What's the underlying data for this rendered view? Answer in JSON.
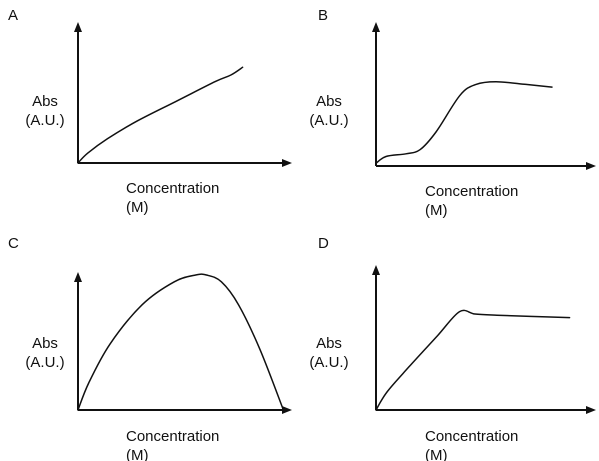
{
  "chart_data": [
    {
      "type": "line",
      "panel": "A",
      "ylabel": [
        "Abs",
        "(A.U.)"
      ],
      "xlabel": [
        "Concentration",
        "(M)"
      ],
      "xlim": [
        0,
        1
      ],
      "ylim": [
        0,
        1
      ],
      "series": [
        {
          "x": [
            0,
            0.05,
            0.15,
            0.3,
            0.5,
            0.7,
            0.78,
            0.84
          ],
          "y": [
            0,
            0.09,
            0.22,
            0.38,
            0.56,
            0.74,
            0.8,
            0.87
          ]
        }
      ]
    },
    {
      "type": "line",
      "panel": "B",
      "ylabel": [
        "Abs",
        "(A.U.)"
      ],
      "xlabel": [
        "Concentration",
        "(M)"
      ],
      "xlim": [
        0,
        1
      ],
      "ylim": [
        0,
        1
      ],
      "series": [
        {
          "x": [
            0,
            0.05,
            0.15,
            0.22,
            0.3,
            0.42,
            0.5,
            0.6,
            0.75,
            0.88
          ],
          "y": [
            0.02,
            0.07,
            0.09,
            0.12,
            0.25,
            0.52,
            0.6,
            0.62,
            0.6,
            0.58
          ]
        }
      ]
    },
    {
      "type": "line",
      "panel": "C",
      "ylabel": [
        "Abs",
        "(A.U.)"
      ],
      "xlabel": [
        "Concentration",
        "(M)"
      ],
      "xlim": [
        0,
        1
      ],
      "ylim": [
        0,
        1
      ],
      "series": [
        {
          "x": [
            0,
            0.05,
            0.15,
            0.3,
            0.45,
            0.55,
            0.6,
            0.67,
            0.75,
            0.85,
            0.96
          ],
          "y": [
            0,
            0.2,
            0.49,
            0.78,
            0.95,
            1.0,
            1.0,
            0.95,
            0.78,
            0.45,
            0
          ]
        }
      ]
    },
    {
      "type": "line",
      "panel": "D",
      "ylabel": [
        "Abs",
        "(A.U.)"
      ],
      "xlabel": [
        "Concentration",
        "(M)"
      ],
      "xlim": [
        0,
        1
      ],
      "ylim": [
        0,
        1
      ],
      "series": [
        {
          "x": [
            0,
            0.05,
            0.15,
            0.28,
            0.38,
            0.45,
            0.55,
            0.7,
            0.88
          ],
          "y": [
            0,
            0.15,
            0.36,
            0.62,
            0.82,
            0.8,
            0.79,
            0.78,
            0.77
          ]
        }
      ]
    }
  ]
}
